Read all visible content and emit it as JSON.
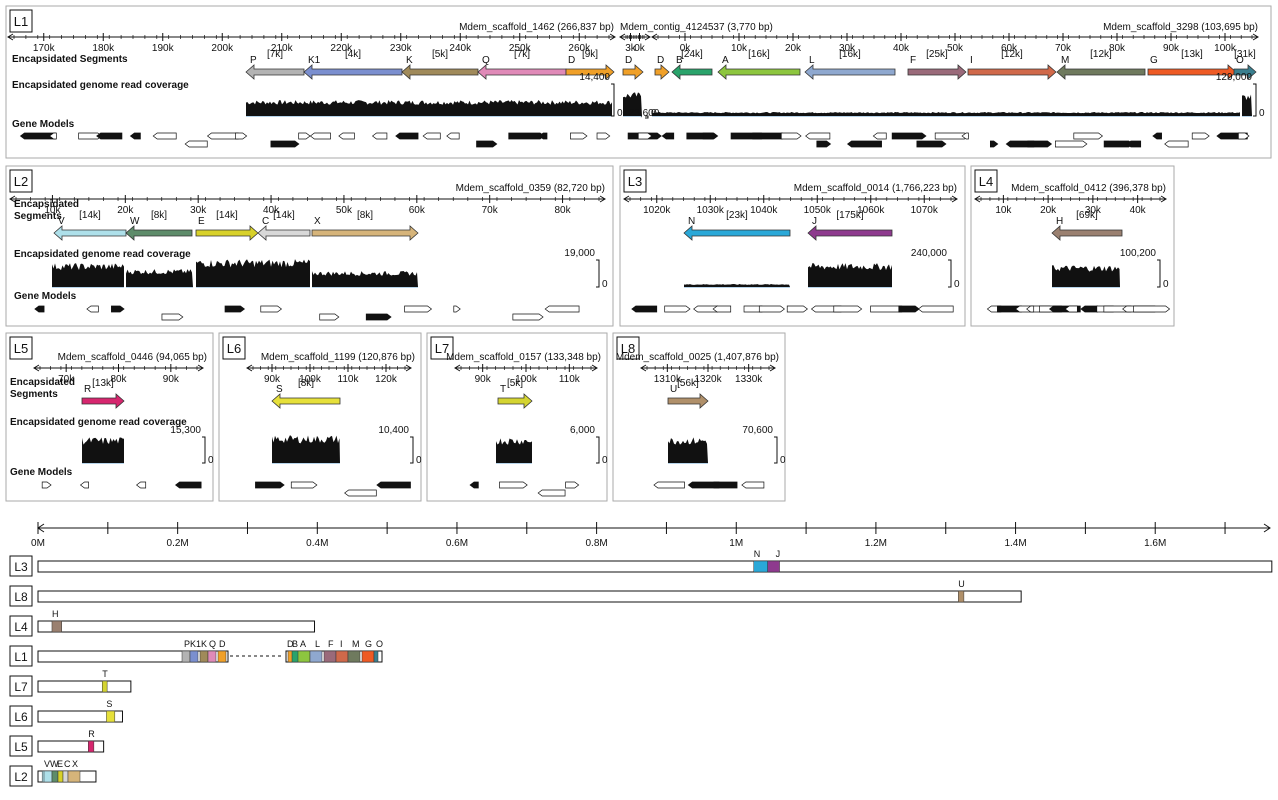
{
  "texts": {
    "encapsidated_segments": "Encapsidated Segments",
    "encapsidated": "Encapsidated",
    "segments": "Segments",
    "coverage": "Encapsidated genome read coverage",
    "gene_models": "Gene Models",
    "zero": "0"
  },
  "colors": {
    "coverage_fill": "#111111",
    "baseline": "#6fa8d6",
    "panel_border": "#aaaaaa",
    "gene_fill_dark": "#111111",
    "gene_fill_light": "#ffffff"
  },
  "panels": [
    {
      "id": "L1",
      "label": "L1",
      "scaffolds": [
        {
          "title": "Mdem_scaffold_1462 (266,837 bp)",
          "ticks": [
            "170k",
            "180k",
            "190k",
            "200k",
            "210k",
            "220k",
            "230k",
            "240k",
            "250k",
            "260k"
          ],
          "coverage_max": "14,400",
          "segments": [
            {
              "name": "P",
              "size": "[7k]",
              "color": "#b3b3b3",
              "dir": "left"
            },
            {
              "name": "K1",
              "size": "[4k]",
              "color": "#7b8fcf",
              "dir": "left"
            },
            {
              "name": "K",
              "size": "[5k]",
              "color": "#a08a5a",
              "dir": "left"
            },
            {
              "name": "Q",
              "size": "[7k]",
              "color": "#e08ab8",
              "dir": "left"
            },
            {
              "name": "D",
              "size": "[9k]",
              "color": "#f0a028",
              "dir": "right"
            }
          ]
        },
        {
          "title": "Mdem_contig_4124537 (3,770 bp)",
          "ticks": [
            "3k",
            "0k"
          ],
          "coverage_max": "23,600",
          "segments": [
            {
              "name": "D",
              "size": "",
              "color": "#f0a028",
              "dir": "right"
            }
          ]
        },
        {
          "title": "Mdem_scaffold_3298 (103,695 bp)",
          "ticks": [
            "0k",
            "10k",
            "20k",
            "30k",
            "40k",
            "50k",
            "60k",
            "70k",
            "80k",
            "90k",
            "100k"
          ],
          "coverage_max": "129,000",
          "segments": [
            {
              "name": "D",
              "size": "",
              "color": "#f0a028",
              "dir": "right"
            },
            {
              "name": "B",
              "size": "[24k]",
              "color": "#2aa36b",
              "dir": "left"
            },
            {
              "name": "A",
              "size": "[16k]",
              "color": "#8dc63f",
              "dir": "left"
            },
            {
              "name": "L",
              "size": "[16k]",
              "color": "#8fa8cf",
              "dir": "left"
            },
            {
              "name": "F",
              "size": "[25k]",
              "color": "#9a6a7a",
              "dir": "right"
            },
            {
              "name": "I",
              "size": "[12k]",
              "color": "#d0694a",
              "dir": "right"
            },
            {
              "name": "M",
              "size": "[12k]",
              "color": "#6f7a5e",
              "dir": "left"
            },
            {
              "name": "G",
              "size": "[13k]",
              "color": "#ee5a24",
              "dir": "right"
            },
            {
              "name": "O",
              "size": "[31k]",
              "color": "#3a7f8f",
              "dir": "right"
            }
          ]
        }
      ]
    },
    {
      "id": "L2",
      "label": "L2",
      "title": "Mdem_scaffold_0359 (82,720 bp)",
      "ticks": [
        "10k",
        "20k",
        "30k",
        "40k",
        "50k",
        "60k",
        "70k",
        "80k"
      ],
      "coverage_max": "19,000",
      "segments": [
        {
          "name": "V",
          "size": "[14k]",
          "color": "#aee0ea",
          "dir": "left"
        },
        {
          "name": "W",
          "size": "[8k]",
          "color": "#5e8c6a",
          "dir": "left"
        },
        {
          "name": "E",
          "size": "[14k]",
          "color": "#d8d12a",
          "dir": "right"
        },
        {
          "name": "C",
          "size": "[14k]",
          "color": "#d8d8d8",
          "dir": "left"
        },
        {
          "name": "X",
          "size": "[8k]",
          "color": "#d6b47a",
          "dir": "right"
        }
      ]
    },
    {
      "id": "L3",
      "label": "L3",
      "title": "Mdem_scaffold_0014 (1,766,223 bp)",
      "ticks": [
        "1020k",
        "1030k",
        "1040k",
        "1050k",
        "1060k",
        "1070k"
      ],
      "coverage_max": "240,000",
      "segments": [
        {
          "name": "N",
          "size": "[23k]",
          "color": "#2aa8d8",
          "dir": "left"
        },
        {
          "name": "J",
          "size": "[175k]",
          "color": "#8e3a8e",
          "dir": "left"
        }
      ]
    },
    {
      "id": "L4",
      "label": "L4",
      "title": "Mdem_scaffold_0412 (396,378 bp)",
      "ticks": [
        "10k",
        "20k",
        "30k",
        "40k"
      ],
      "coverage_max": "100,200",
      "segments": [
        {
          "name": "H",
          "size": "[69k]",
          "color": "#9a8070",
          "dir": "left"
        }
      ]
    },
    {
      "id": "L5",
      "label": "L5",
      "title": "Mdem_scaffold_0446 (94,065 bp)",
      "ticks": [
        "70k",
        "80k",
        "90k"
      ],
      "coverage_max": "15,300",
      "segments": [
        {
          "name": "R",
          "size": "[13k]",
          "color": "#d6266e",
          "dir": "right"
        }
      ]
    },
    {
      "id": "L6",
      "label": "L6",
      "title": "Mdem_scaffold_1199 (120,876 bp)",
      "ticks": [
        "90k",
        "100k",
        "110k",
        "120k"
      ],
      "coverage_max": "10,400",
      "segments": [
        {
          "name": "S",
          "size": "[8k]",
          "color": "#e6e03a",
          "dir": "left"
        }
      ]
    },
    {
      "id": "L7",
      "label": "L7",
      "title": "Mdem_scaffold_0157 (133,348 bp)",
      "ticks": [
        "90k",
        "100k",
        "110k"
      ],
      "coverage_max": "6,000",
      "segments": [
        {
          "name": "T",
          "size": "[5k]",
          "color": "#d4d432",
          "dir": "right"
        }
      ]
    },
    {
      "id": "L8",
      "label": "L8",
      "title": "Mdem_scaffold_0025 (1,407,876 bp)",
      "ticks": [
        "1310k",
        "1320k",
        "1330k"
      ],
      "coverage_max": "70,600",
      "segments": [
        {
          "name": "U",
          "size": "[56k]",
          "color": "#b0906a",
          "dir": "right"
        }
      ]
    }
  ],
  "overview": {
    "axis_ticks": [
      "0M",
      "0.2M",
      "0.4M",
      "0.6M",
      "0.8M",
      "1M",
      "1.2M",
      "1.4M",
      "1.6M"
    ],
    "rows": [
      {
        "label": "L3",
        "seg_labels": [
          "N",
          "J"
        ],
        "colors": [
          "#2aa8d8",
          "#8e3a8e"
        ]
      },
      {
        "label": "L8",
        "seg_labels": [
          "U"
        ],
        "colors": [
          "#b0906a"
        ]
      },
      {
        "label": "L4",
        "seg_labels": [
          "H"
        ],
        "colors": [
          "#9a8070"
        ]
      },
      {
        "label": "L1",
        "seg_labels": [
          "P",
          "K1",
          "K",
          "Q",
          "D",
          "D",
          "B",
          "A",
          "L",
          "F",
          "I",
          "M",
          "G",
          "O"
        ],
        "colors": [
          "#b3b3b3",
          "#7b8fcf",
          "#a08a5a",
          "#e08ab8",
          "#f0a028",
          "#f0a028",
          "#2aa36b",
          "#8dc63f",
          "#8fa8cf",
          "#9a6a7a",
          "#d0694a",
          "#6f7a5e",
          "#ee5a24",
          "#3a7f8f"
        ]
      },
      {
        "label": "L7",
        "seg_labels": [
          "T"
        ],
        "colors": [
          "#d4d432"
        ]
      },
      {
        "label": "L6",
        "seg_labels": [
          "S"
        ],
        "colors": [
          "#e6e03a"
        ]
      },
      {
        "label": "L5",
        "seg_labels": [
          "R"
        ],
        "colors": [
          "#d6266e"
        ]
      },
      {
        "label": "L2",
        "seg_labels": [
          "V",
          "W",
          "E",
          "C",
          "X"
        ],
        "colors": [
          "#aee0ea",
          "#5e8c6a",
          "#d8d12a",
          "#d8d8d8",
          "#d6b47a"
        ]
      }
    ]
  }
}
